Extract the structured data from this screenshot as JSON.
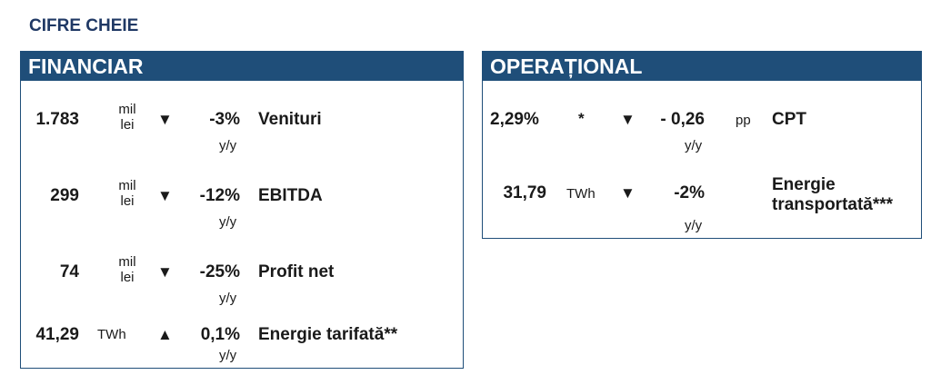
{
  "page_title": "CIFRE CHEIE",
  "financiar": {
    "title": "FINANCIAR",
    "rows": [
      {
        "value": "1.783",
        "unit_top": "mil",
        "unit_bottom": "lei",
        "arrow": "▼",
        "change": "-3%",
        "change_unit": "y/y",
        "label": "Venituri"
      },
      {
        "value": "299",
        "unit_top": "mil",
        "unit_bottom": "lei",
        "arrow": "▼",
        "change": "-12%",
        "change_unit": "y/y",
        "label": "EBITDA"
      },
      {
        "value": "74",
        "unit_top": "mil",
        "unit_bottom": "lei",
        "arrow": "▼",
        "change": "-25%",
        "change_unit": "y/y",
        "label": "Profit net"
      },
      {
        "value": "41,29",
        "unit": "TWh",
        "arrow": "▲",
        "change": "0,1%",
        "change_unit": "y/y",
        "label": "Energie tarifată**"
      }
    ]
  },
  "operational": {
    "title": "OPERAȚIONAL",
    "rows": [
      {
        "value": "2,29%",
        "marker": "*",
        "arrow": "▼",
        "change": "- 0,26",
        "change_suffix": "pp",
        "change_unit": "y/y",
        "label": "CPT"
      },
      {
        "value": "31,79",
        "unit": "TWh",
        "arrow": "▼",
        "change": "-2%",
        "change_unit": "y/y",
        "label_line1": "Energie",
        "label_line2": "transportată***"
      }
    ]
  }
}
